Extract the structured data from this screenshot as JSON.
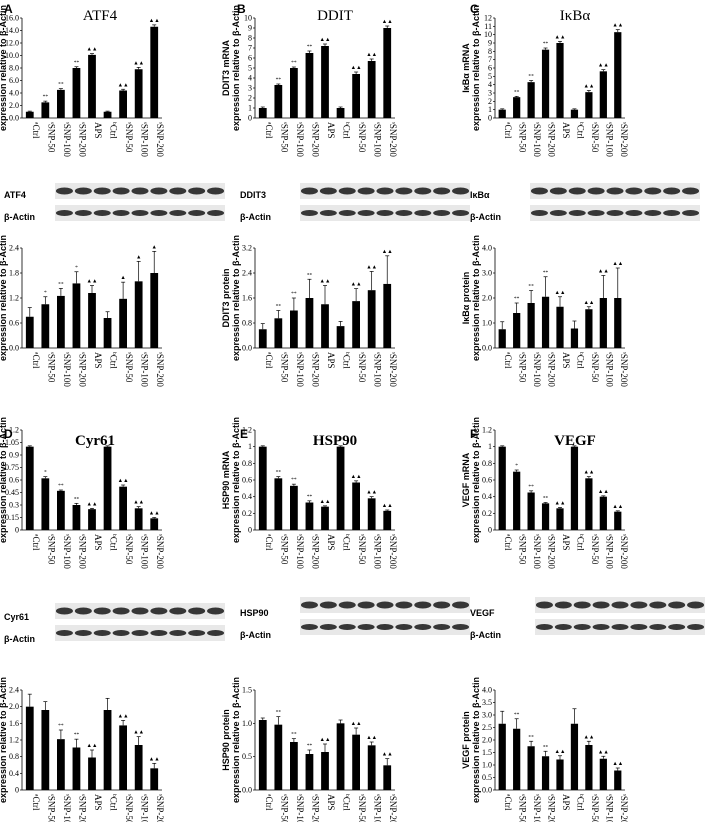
{
  "categories": [
    "ᵃCtrl",
    "ˢSNP-50",
    "ˢSNP-100",
    "ˢSNP-200",
    "APS",
    "ᵇCtrl",
    "ˢSNP-50",
    "ˢSNP-100",
    "ˢSNP-200"
  ],
  "figure_title": "",
  "chart_data": [
    {
      "panel": "A",
      "type": "bar",
      "title": "ATF4",
      "ylabel": [
        "ATF4 mRNA",
        "expression relative to β-Actin"
      ],
      "ylim": [
        0,
        16
      ],
      "yticks": [
        "0.0",
        "2.0",
        "4.0",
        "6.0",
        "8.0",
        "10.0",
        "12.0",
        "14.0",
        "16.0"
      ],
      "values": [
        1.0,
        2.5,
        4.5,
        8.0,
        10.1,
        1.0,
        4.4,
        7.8,
        14.6
      ],
      "errors": [
        0.1,
        0.2,
        0.2,
        0.2,
        0.2,
        0.1,
        0.2,
        0.3,
        0.3
      ],
      "sig": [
        "",
        "**",
        "**",
        "**",
        "▲▲",
        "",
        "▲▲",
        "▲▲",
        "▲▲"
      ]
    },
    {
      "panel": "B",
      "type": "bar",
      "title": "DDIT",
      "ylabel": [
        "DDIT3 mRNA",
        "expression relative to β-Actin"
      ],
      "ylim": [
        0,
        10
      ],
      "yticks": [
        "0",
        "1",
        "2",
        "3",
        "4",
        "5",
        "6",
        "7",
        "8",
        "9",
        "10"
      ],
      "values": [
        1.0,
        3.3,
        5.0,
        6.5,
        7.2,
        1.0,
        4.4,
        5.7,
        9.0
      ],
      "errors": [
        0.1,
        0.1,
        0.1,
        0.2,
        0.2,
        0.1,
        0.2,
        0.2,
        0.2
      ],
      "sig": [
        "",
        "**",
        "**",
        "**",
        "▲▲",
        "",
        "▲▲",
        "▲▲",
        "▲▲"
      ]
    },
    {
      "panel": "C",
      "type": "bar",
      "title": "IκBα",
      "ylabel": [
        "IκBα mRNA",
        "expression relative to β-Actin"
      ],
      "ylim": [
        0,
        12
      ],
      "yticks": [
        "0",
        "1",
        "2",
        "3",
        "4",
        "5",
        "6",
        "7",
        "8",
        "9",
        "10",
        "11",
        "12"
      ],
      "values": [
        1.0,
        2.5,
        4.3,
        8.2,
        9.0,
        1.0,
        3.1,
        5.6,
        10.3
      ],
      "errors": [
        0.1,
        0.1,
        0.2,
        0.2,
        0.2,
        0.1,
        0.2,
        0.2,
        0.3
      ],
      "sig": [
        "",
        "**",
        "**",
        "**",
        "▲▲",
        "",
        "▲▲",
        "▲▲",
        "▲▲"
      ]
    },
    {
      "panel": "A",
      "type": "bar",
      "ylabel": [
        "ATF4 protein",
        "expression relative to β-Actin"
      ],
      "ylim": [
        0,
        2.4
      ],
      "yticks": [
        "0.0",
        "0.6",
        "1.2",
        "1.8",
        "2.4"
      ],
      "values": [
        0.75,
        1.05,
        1.25,
        1.55,
        1.32,
        0.72,
        1.18,
        1.6,
        1.8
      ],
      "errors": [
        0.22,
        0.18,
        0.18,
        0.28,
        0.18,
        0.15,
        0.4,
        0.48,
        0.52
      ],
      "sig": [
        "",
        "*",
        "**",
        "*",
        "▲▲",
        "",
        "▲",
        "▲",
        "▲"
      ]
    },
    {
      "panel": "B",
      "type": "bar",
      "blot": true,
      "ylabel": [
        "DDIT3 protein",
        "expression relative to β-Actin"
      ],
      "ylim": [
        0,
        3.2
      ],
      "yticks": [
        "0.0",
        "0.8",
        "1.6",
        "2.4",
        "3.2"
      ],
      "values": [
        0.6,
        0.95,
        1.2,
        1.6,
        1.4,
        0.7,
        1.5,
        1.85,
        2.05
      ],
      "errors": [
        0.18,
        0.25,
        0.4,
        0.6,
        0.6,
        0.15,
        0.4,
        0.6,
        0.9
      ],
      "sig": [
        "",
        "**",
        "**",
        "**",
        "▲▲",
        "",
        "▲▲",
        "▲▲",
        "▲▲"
      ]
    },
    {
      "panel": "C",
      "type": "bar",
      "ylabel": [
        "IκBα protein",
        "expression relative to β-Actin"
      ],
      "ylim": [
        0,
        4.0
      ],
      "yticks": [
        "0.0",
        "1.0",
        "2.0",
        "3.0",
        "4.0"
      ],
      "values": [
        0.75,
        1.4,
        1.8,
        2.05,
        1.65,
        0.78,
        1.55,
        2.0,
        2.0
      ],
      "errors": [
        0.3,
        0.4,
        0.5,
        0.8,
        0.4,
        0.3,
        0.1,
        0.9,
        1.2
      ],
      "sig": [
        "",
        "**",
        "**",
        "**",
        "▲▲",
        "",
        "▲▲",
        "▲▲",
        "▲▲"
      ]
    },
    {
      "panel": "D",
      "type": "bar",
      "title": "Cyr61",
      "ylabel": [
        "Cyr61 mRNA",
        "expression relative to β-Actin"
      ],
      "ylim": [
        0,
        1.2
      ],
      "yticks": [
        "0",
        "0.15",
        "0.3",
        "0.45",
        "0.6",
        "0.75",
        "0.9",
        "1.05",
        "1.2"
      ],
      "values": [
        1.0,
        0.62,
        0.47,
        0.3,
        0.25,
        1.0,
        0.52,
        0.26,
        0.14
      ],
      "errors": [
        0.01,
        0.02,
        0.01,
        0.02,
        0.01,
        0.01,
        0.02,
        0.02,
        0.01
      ],
      "sig": [
        "",
        "*",
        "**",
        "**",
        "▲▲",
        "",
        "▲▲",
        "▲▲",
        "▲▲"
      ]
    },
    {
      "panel": "E",
      "type": "bar",
      "title": "HSP90",
      "ylabel": [
        "HSP90 mRNA",
        "expression relative to β-Actin"
      ],
      "ylim": [
        0,
        1.2
      ],
      "yticks": [
        "0",
        "0.2",
        "0.4",
        "0.6",
        "0.8",
        "1",
        "1.2"
      ],
      "values": [
        1.0,
        0.62,
        0.53,
        0.33,
        0.28,
        1.0,
        0.57,
        0.38,
        0.23
      ],
      "errors": [
        0.01,
        0.02,
        0.02,
        0.02,
        0.01,
        0.01,
        0.02,
        0.02,
        0.01
      ],
      "sig": [
        "",
        "**",
        "**",
        "**",
        "▲▲",
        "",
        "▲▲",
        "▲▲",
        "▲▲"
      ]
    },
    {
      "panel": "F",
      "type": "bar",
      "title": "VEGF",
      "ylabel": [
        "VEGF mRNA",
        "expression relative to β-Actin"
      ],
      "ylim": [
        0,
        1.2
      ],
      "yticks": [
        "0",
        "0.2",
        "0.4",
        "0.6",
        "0.8",
        "1",
        "1.2"
      ],
      "values": [
        1.0,
        0.7,
        0.45,
        0.32,
        0.26,
        1.0,
        0.62,
        0.4,
        0.22
      ],
      "errors": [
        0.01,
        0.02,
        0.02,
        0.01,
        0.01,
        0.01,
        0.02,
        0.01,
        0.01
      ],
      "sig": [
        "",
        "*",
        "**",
        "**",
        "▲▲",
        "",
        "▲▲",
        "▲▲",
        "▲▲"
      ]
    },
    {
      "panel": "D",
      "type": "bar",
      "ylabel": [
        "Cyr61 protein",
        "expression relative to β-Actin"
      ],
      "ylim": [
        0,
        2.4
      ],
      "yticks": [
        "0",
        "0.4",
        "0.8",
        "1.2",
        "1.6",
        "2.0",
        "2.4"
      ],
      "values": [
        2.0,
        1.92,
        1.22,
        1.02,
        0.78,
        1.92,
        1.55,
        1.08,
        0.52
      ],
      "errors": [
        0.3,
        0.2,
        0.22,
        0.2,
        0.18,
        0.28,
        0.12,
        0.2,
        0.12
      ],
      "sig": [
        "",
        "",
        "**",
        "**",
        "▲▲",
        "",
        "▲▲",
        "▲▲",
        "▲▲"
      ]
    },
    {
      "panel": "E",
      "type": "bar",
      "ylabel": [
        "HSP90 protein",
        "expression relative to β-Actin"
      ],
      "ylim": [
        0,
        1.5
      ],
      "yticks": [
        "0.0",
        "0.5",
        "1.0",
        "1.5"
      ],
      "values": [
        1.05,
        0.98,
        0.72,
        0.54,
        0.57,
        1.0,
        0.83,
        0.67,
        0.37
      ],
      "errors": [
        0.03,
        0.12,
        0.05,
        0.06,
        0.12,
        0.05,
        0.1,
        0.05,
        0.1
      ],
      "sig": [
        "",
        "**",
        "**",
        "**",
        "▲▲",
        "",
        "▲▲",
        "▲▲",
        "▲▲"
      ]
    },
    {
      "panel": "F",
      "type": "bar",
      "ylabel": [
        "VEGF protein",
        "expression relative to β-Actin"
      ],
      "ylim": [
        0,
        4.0
      ],
      "yticks": [
        "0.0",
        "0.5",
        "1.0",
        "1.5",
        "2.0",
        "2.5",
        "3.0",
        "3.5",
        "4.0"
      ],
      "values": [
        2.65,
        2.45,
        1.75,
        1.35,
        1.22,
        2.65,
        1.8,
        1.25,
        0.78
      ],
      "errors": [
        0.5,
        0.4,
        0.2,
        0.2,
        0.15,
        0.6,
        0.15,
        0.1,
        0.1
      ],
      "sig": [
        "",
        "**",
        "**",
        "**",
        "▲▲",
        "",
        "▲▲",
        "▲▲",
        "▲▲"
      ]
    }
  ],
  "blots": [
    {
      "panel": "A",
      "rows": [
        "ATF4",
        "β-Actin"
      ]
    },
    {
      "panel": "B",
      "rows": [
        "DDIT3",
        "β-Actin"
      ]
    },
    {
      "panel": "C",
      "rows": [
        "IκBα",
        "β-Actin"
      ]
    },
    {
      "panel": "D",
      "rows": [
        "Cyr61",
        "β-Actin"
      ]
    },
    {
      "panel": "E",
      "rows": [
        "HSP90",
        "β-Actin"
      ]
    },
    {
      "panel": "F",
      "rows": [
        "VEGF",
        "β-Actin"
      ]
    }
  ],
  "colors": {
    "bar": "#000000",
    "axis": "#000000",
    "blot_bg": "#e8e8e8",
    "blot_band": "#161616"
  }
}
